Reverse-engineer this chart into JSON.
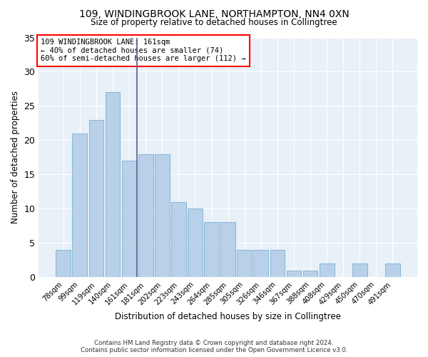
{
  "title1": "109, WINDINGBROOK LANE, NORTHAMPTON, NN4 0XN",
  "title2": "Size of property relative to detached houses in Collingtree",
  "xlabel": "Distribution of detached houses by size in Collingtree",
  "ylabel": "Number of detached properties",
  "categories": [
    "78sqm",
    "99sqm",
    "119sqm",
    "140sqm",
    "161sqm",
    "181sqm",
    "202sqm",
    "223sqm",
    "243sqm",
    "264sqm",
    "285sqm",
    "305sqm",
    "326sqm",
    "346sqm",
    "367sqm",
    "388sqm",
    "408sqm",
    "429sqm",
    "450sqm",
    "470sqm",
    "491sqm"
  ],
  "values": [
    4,
    21,
    23,
    27,
    17,
    18,
    18,
    11,
    10,
    8,
    8,
    4,
    4,
    4,
    1,
    1,
    2,
    0,
    2,
    0,
    2
  ],
  "bar_color_normal": "#b8d0e8",
  "bar_edge_color": "#7aafd4",
  "highlight_index": 4,
  "ylim": [
    0,
    35
  ],
  "yticks": [
    0,
    5,
    10,
    15,
    20,
    25,
    30,
    35
  ],
  "bg_color": "#e8f0f8",
  "annotation_line1": "109 WINDINGBROOK LANE: 161sqm",
  "annotation_line2": "← 40% of detached houses are smaller (74)",
  "annotation_line3": "60% of semi-detached houses are larger (112) →",
  "footer1": "Contains HM Land Registry data © Crown copyright and database right 2024.",
  "footer2": "Contains public sector information licensed under the Open Government Licence v3.0."
}
